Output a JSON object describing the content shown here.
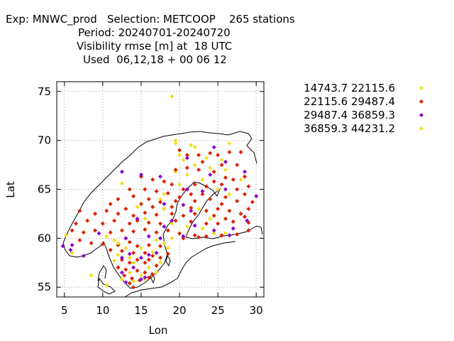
{
  "title_lines": [
    "Exp: MNWC_prod   Selection: METCOOP    265 stations",
    "Period: 20240701-20240720",
    "Visibility rmse [m] at  18 UTC",
    "Used  06,12,18 + 00 06 12"
  ],
  "colors": {
    "yellow": "#f0e020",
    "red": "#dd2200",
    "purple": "#8800cc",
    "axis": "#000000",
    "grid": "#a0a0a0"
  },
  "chart_data": {
    "type": "scatter",
    "xlabel": "Lon",
    "ylabel": "Lat",
    "xlim": [
      4,
      31
    ],
    "ylim": [
      54,
      76
    ],
    "xticks": [
      5,
      10,
      15,
      20,
      25,
      30
    ],
    "yticks": [
      55,
      60,
      65,
      70,
      75
    ],
    "grid": true,
    "legend_position": "right",
    "series": [
      {
        "name": "14743.7 22115.6",
        "color": "#f0e020",
        "points": [
          [
            19.0,
            74.5
          ],
          [
            19.5,
            70.0
          ],
          [
            21.5,
            69.5
          ],
          [
            22.0,
            69.3
          ],
          [
            26.5,
            69.7
          ],
          [
            20.0,
            68.5
          ],
          [
            20.5,
            68.0
          ],
          [
            23.5,
            68.2
          ],
          [
            25.5,
            68.0
          ],
          [
            22.0,
            67.5
          ],
          [
            24.0,
            67.2
          ],
          [
            26.0,
            67.0
          ],
          [
            12.5,
            65.6
          ],
          [
            19.5,
            66.8
          ],
          [
            20.0,
            65.5
          ],
          [
            21.0,
            66.5
          ],
          [
            23.0,
            66.0
          ],
          [
            28.0,
            66.0
          ],
          [
            18.0,
            64.5
          ],
          [
            25.0,
            65.0
          ],
          [
            26.5,
            64.5
          ],
          [
            17.5,
            64.0
          ],
          [
            14.5,
            63.2
          ],
          [
            22.5,
            63.0
          ],
          [
            15.5,
            62.0
          ],
          [
            24.0,
            62.0
          ],
          [
            19.0,
            61.5
          ],
          [
            21.0,
            61.2
          ],
          [
            23.0,
            61.0
          ],
          [
            24.5,
            60.5
          ],
          [
            26.0,
            60.5
          ],
          [
            5.2,
            60.3
          ],
          [
            10.5,
            60.2
          ],
          [
            11.5,
            59.8
          ],
          [
            17.0,
            59.8
          ],
          [
            18.0,
            59.5
          ],
          [
            19.0,
            60.0
          ],
          [
            15.0,
            59.0
          ],
          [
            18.5,
            59.0
          ],
          [
            13.0,
            59.0
          ],
          [
            16.5,
            58.6
          ],
          [
            12.0,
            58.3
          ],
          [
            6.0,
            58.5
          ],
          [
            11.5,
            57.7
          ],
          [
            14.0,
            57.5
          ],
          [
            16.0,
            57.0
          ],
          [
            17.5,
            57.5
          ],
          [
            13.5,
            56.5
          ],
          [
            15.0,
            56.2
          ],
          [
            17.0,
            56.5
          ],
          [
            12.5,
            55.8
          ],
          [
            14.0,
            55.6
          ],
          [
            15.5,
            55.8
          ],
          [
            10.5,
            55.2
          ],
          [
            8.5,
            56.2
          ]
        ]
      },
      {
        "name": "22115.6 29487.4",
        "color": "#dd2200",
        "points": [
          [
            20.0,
            69.0
          ],
          [
            21.0,
            68.5
          ],
          [
            22.5,
            68.5
          ],
          [
            24.0,
            68.7
          ],
          [
            25.0,
            68.5
          ],
          [
            26.5,
            68.8
          ],
          [
            28.0,
            68.8
          ],
          [
            23.0,
            67.8
          ],
          [
            25.5,
            67.5
          ],
          [
            27.5,
            67.5
          ],
          [
            19.5,
            67.0
          ],
          [
            21.0,
            67.2
          ],
          [
            22.5,
            67.0
          ],
          [
            24.5,
            66.8
          ],
          [
            26.0,
            66.2
          ],
          [
            27.0,
            66.0
          ],
          [
            28.5,
            66.3
          ],
          [
            15.0,
            66.3
          ],
          [
            16.5,
            66.0
          ],
          [
            18.0,
            65.8
          ],
          [
            19.0,
            65.5
          ],
          [
            20.5,
            65.0
          ],
          [
            22.0,
            65.5
          ],
          [
            23.5,
            65.3
          ],
          [
            24.5,
            65.8
          ],
          [
            25.5,
            65.5
          ],
          [
            27.5,
            65.0
          ],
          [
            29.0,
            65.3
          ],
          [
            13.5,
            65.0
          ],
          [
            15.5,
            65.0
          ],
          [
            17.0,
            64.8
          ],
          [
            18.5,
            64.6
          ],
          [
            20.0,
            64.2
          ],
          [
            21.5,
            64.5
          ],
          [
            23.0,
            64.5
          ],
          [
            24.0,
            64.0
          ],
          [
            26.0,
            64.2
          ],
          [
            28.5,
            64.5
          ],
          [
            12.0,
            64.0
          ],
          [
            14.0,
            64.3
          ],
          [
            16.0,
            64.0
          ],
          [
            17.5,
            63.7
          ],
          [
            19.5,
            63.8
          ],
          [
            22.0,
            63.8
          ],
          [
            25.5,
            63.5
          ],
          [
            27.5,
            63.8
          ],
          [
            29.5,
            63.7
          ],
          [
            11.0,
            63.5
          ],
          [
            13.0,
            63.0
          ],
          [
            15.0,
            63.5
          ],
          [
            16.5,
            63.2
          ],
          [
            18.0,
            63.0
          ],
          [
            19.0,
            63.2
          ],
          [
            21.5,
            63.1
          ],
          [
            23.5,
            62.8
          ],
          [
            25.0,
            63.0
          ],
          [
            26.5,
            62.8
          ],
          [
            28.0,
            62.5
          ],
          [
            29.0,
            63.0
          ],
          [
            7.0,
            62.8
          ],
          [
            9.0,
            62.5
          ],
          [
            10.5,
            62.8
          ],
          [
            12.0,
            62.5
          ],
          [
            14.0,
            62.3
          ],
          [
            15.5,
            62.6
          ],
          [
            17.0,
            62.4
          ],
          [
            19.0,
            62.5
          ],
          [
            20.5,
            62.3
          ],
          [
            22.0,
            62.5
          ],
          [
            24.5,
            62.3
          ],
          [
            26.0,
            62.0
          ],
          [
            28.5,
            62.2
          ],
          [
            6.5,
            61.5
          ],
          [
            8.0,
            61.8
          ],
          [
            10.0,
            61.5
          ],
          [
            11.5,
            61.8
          ],
          [
            13.5,
            61.5
          ],
          [
            14.5,
            61.8
          ],
          [
            16.0,
            61.6
          ],
          [
            17.5,
            61.5
          ],
          [
            19.5,
            61.8
          ],
          [
            21.5,
            61.7
          ],
          [
            23.5,
            61.5
          ],
          [
            25.0,
            61.5
          ],
          [
            27.0,
            61.7
          ],
          [
            29.0,
            61.6
          ],
          [
            6.0,
            60.8
          ],
          [
            7.5,
            60.6
          ],
          [
            9.0,
            60.8
          ],
          [
            11.0,
            60.6
          ],
          [
            12.5,
            60.8
          ],
          [
            14.0,
            60.7
          ],
          [
            15.5,
            60.9
          ],
          [
            17.0,
            60.6
          ],
          [
            18.5,
            60.8
          ],
          [
            20.0,
            60.5
          ],
          [
            22.0,
            60.3
          ],
          [
            23.5,
            60.2
          ],
          [
            25.5,
            60.3
          ],
          [
            27.5,
            60.4
          ],
          [
            29.0,
            60.8
          ],
          [
            7.0,
            59.8
          ],
          [
            8.5,
            59.5
          ],
          [
            10.0,
            59.4
          ],
          [
            12.0,
            59.3
          ],
          [
            13.5,
            59.6
          ],
          [
            14.5,
            59.2
          ],
          [
            16.0,
            59.3
          ],
          [
            17.5,
            59.2
          ],
          [
            20.5,
            60.0
          ],
          [
            22.5,
            60.1
          ],
          [
            11.0,
            58.8
          ],
          [
            12.5,
            58.7
          ],
          [
            14.0,
            58.5
          ],
          [
            15.5,
            58.5
          ],
          [
            16.5,
            58.2
          ],
          [
            17.5,
            58.0
          ],
          [
            18.5,
            58.4
          ],
          [
            12.5,
            57.8
          ],
          [
            13.5,
            57.5
          ],
          [
            14.5,
            57.8
          ],
          [
            15.5,
            57.5
          ],
          [
            16.0,
            57.8
          ],
          [
            17.0,
            57.2
          ],
          [
            12.0,
            57.0
          ],
          [
            13.0,
            56.8
          ],
          [
            14.5,
            56.7
          ],
          [
            15.5,
            56.5
          ],
          [
            16.5,
            56.3
          ],
          [
            12.8,
            56.2
          ],
          [
            13.8,
            55.9
          ],
          [
            14.8,
            55.7
          ],
          [
            16.0,
            56.0
          ],
          [
            13.5,
            55.4
          ],
          [
            14.0,
            55.0
          ]
        ]
      },
      {
        "name": "29487.4 36859.3",
        "color": "#8800cc",
        "points": [
          [
            24.5,
            69.3
          ],
          [
            21.0,
            68.2
          ],
          [
            26.0,
            67.8
          ],
          [
            12.5,
            66.8
          ],
          [
            15.0,
            66.5
          ],
          [
            17.5,
            66.3
          ],
          [
            24.0,
            66.5
          ],
          [
            28.5,
            66.8
          ],
          [
            26.0,
            65.0
          ],
          [
            21.0,
            65.0
          ],
          [
            30.0,
            64.3
          ],
          [
            23.0,
            64.8
          ],
          [
            18.0,
            63.5
          ],
          [
            20.5,
            63.4
          ],
          [
            21.5,
            62.8
          ],
          [
            14.5,
            62.0
          ],
          [
            19.0,
            61.8
          ],
          [
            18.0,
            61.2
          ],
          [
            22.0,
            61.3
          ],
          [
            28.8,
            61.8
          ],
          [
            27.0,
            61.0
          ],
          [
            24.5,
            60.8
          ],
          [
            26.5,
            60.3
          ],
          [
            13.0,
            60.0
          ],
          [
            16.0,
            60.2
          ],
          [
            17.5,
            60.0
          ],
          [
            20.5,
            60.2
          ],
          [
            9.5,
            60.5
          ],
          [
            6.0,
            59.3
          ],
          [
            4.8,
            59.2
          ],
          [
            7.5,
            58.2
          ],
          [
            5.8,
            58.8
          ],
          [
            12.5,
            58.0
          ],
          [
            13.5,
            58.4
          ],
          [
            15.0,
            58.0
          ],
          [
            16.0,
            58.3
          ],
          [
            14.0,
            57.0
          ],
          [
            17.0,
            58.5
          ],
          [
            15.5,
            56.0
          ],
          [
            15.0,
            55.8
          ],
          [
            12.5,
            56.5
          ],
          [
            13.0,
            55.5
          ]
        ]
      },
      {
        "name": "36859.3 44231.2",
        "color": "#f0e020",
        "points": [
          [
            19.5,
            69.7
          ],
          [
            18.0,
            63.0
          ],
          [
            12.0,
            59.5
          ],
          [
            13.5,
            58.0
          ]
        ]
      }
    ]
  }
}
